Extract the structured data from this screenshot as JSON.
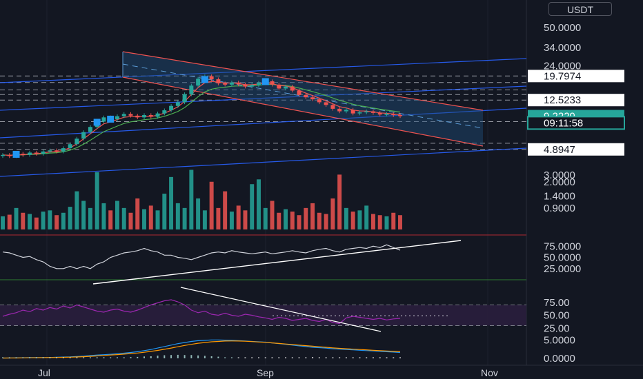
{
  "currency": "USDT",
  "colors": {
    "background": "#131722",
    "grid": "#1e222d",
    "text": "#d1d4dc",
    "up": "#26a69a",
    "down": "#ef5350",
    "channel_line": "#2962ff",
    "channel_fill": "#1f4e79",
    "rsi": "#9c27b0",
    "rsi_band": "#2a1e3d",
    "macd": "#2196f3",
    "signal": "#ff9800",
    "last_price_tag": "#26a69a"
  },
  "chart_data": [
    {
      "type": "candlestick",
      "title": "",
      "y_scale": "log",
      "y_ticks": [
        "50.0000",
        "34.0000",
        "24.0000",
        "3.0000",
        "2.0000",
        "1.4000",
        "0.9000"
      ],
      "x_ticks": [
        "Jul",
        "Sep",
        "Nov"
      ],
      "price_tags": [
        {
          "label": "19.7974",
          "value": 19.8,
          "style": "white"
        },
        {
          "label": "12.5233",
          "value": 12.52,
          "style": "white"
        },
        {
          "label": "9.2229",
          "value": 9.22,
          "style": "green"
        },
        {
          "label": "09:11:58",
          "value": 8.1,
          "style": "green-outline"
        },
        {
          "label": "4.8947",
          "value": 4.89,
          "style": "white"
        }
      ],
      "horizontal_levels": [
        19.8,
        17.5,
        15.2,
        13.9,
        12.52,
        8.3,
        5.5,
        4.89
      ],
      "close": [
        4.4,
        4.3,
        4.5,
        4.4,
        4.6,
        4.5,
        4.7,
        4.8,
        4.7,
        5.0,
        5.4,
        6.0,
        6.8,
        7.5,
        8.3,
        9.0,
        8.7,
        9.2,
        9.6,
        9.3,
        9.0,
        9.4,
        9.1,
        9.7,
        10.3,
        11.2,
        12.0,
        14.0,
        16.5,
        18.8,
        19.7,
        18.6,
        17.2,
        16.8,
        17.5,
        16.9,
        16.2,
        16.7,
        17.4,
        17.9,
        16.8,
        15.6,
        16.2,
        15.0,
        13.8,
        13.2,
        12.7,
        12.0,
        11.4,
        10.6,
        10.1,
        10.4,
        9.7,
        9.9,
        10.1,
        9.8,
        9.5,
        9.6,
        9.4,
        9.22
      ],
      "volume": [
        0.55,
        0.62,
        0.9,
        0.7,
        0.65,
        0.5,
        0.75,
        0.8,
        0.6,
        0.7,
        0.95,
        1.6,
        1.2,
        0.9,
        2.4,
        1.1,
        0.8,
        1.2,
        0.9,
        0.7,
        1.3,
        0.85,
        1.0,
        0.8,
        1.5,
        2.2,
        1.1,
        0.9,
        2.5,
        1.3,
        0.8,
        2.0,
        0.9,
        1.6,
        0.75,
        1.0,
        0.8,
        1.9,
        2.1,
        0.9,
        1.2,
        0.7,
        0.85,
        0.75,
        0.6,
        0.9,
        1.1,
        0.7,
        0.65,
        1.3,
        2.3,
        0.9,
        0.75,
        0.8,
        1.0,
        0.65,
        0.6,
        0.55,
        0.7,
        0.6
      ]
    },
    {
      "type": "line",
      "title": "",
      "y_ticks": [
        "75.0000",
        "50.0000",
        "25.0000"
      ],
      "ylim": [
        0,
        100
      ],
      "values": [
        62,
        60,
        55,
        50,
        52,
        45,
        40,
        30,
        25,
        25,
        30,
        25,
        30,
        25,
        35,
        40,
        50,
        55,
        60,
        62,
        65,
        70,
        65,
        62,
        55,
        55,
        50,
        48,
        45,
        50,
        55,
        60,
        62,
        60,
        65,
        62,
        60,
        58,
        60,
        62,
        58,
        60,
        62,
        65,
        62,
        60,
        65,
        68,
        70,
        65,
        62,
        68,
        70,
        72,
        70,
        75,
        72,
        78,
        72,
        66
      ]
    },
    {
      "type": "line",
      "title": "",
      "y_ticks": [
        "75.00",
        "50.00",
        "25.00"
      ],
      "ylim": [
        0,
        100
      ],
      "band": [
        30,
        70
      ],
      "values": [
        48,
        52,
        55,
        60,
        57,
        63,
        60,
        65,
        62,
        68,
        64,
        70,
        66,
        62,
        58,
        56,
        60,
        62,
        58,
        56,
        60,
        65,
        70,
        74,
        78,
        80,
        76,
        70,
        60,
        55,
        58,
        52,
        50,
        54,
        50,
        48,
        52,
        50,
        47,
        45,
        42,
        46,
        44,
        40,
        42,
        44,
        40,
        38,
        42,
        36,
        34,
        45,
        48,
        46,
        44,
        42,
        44,
        41,
        43,
        44
      ]
    },
    {
      "type": "line",
      "title": "",
      "y_ticks": [
        "5.0000",
        "0.0000"
      ],
      "ylim": [
        0,
        6
      ],
      "series": [
        {
          "values": [
            0.1,
            0.1,
            0.15,
            0.15,
            0.2,
            0.2,
            0.2,
            0.25,
            0.3,
            0.35,
            0.4,
            0.5,
            0.6,
            0.75,
            0.9,
            1.0,
            1.1,
            1.25,
            1.4,
            1.6,
            1.8,
            2.1,
            2.4,
            2.8,
            3.2,
            3.6,
            4.0,
            4.3,
            4.6,
            4.8,
            4.9,
            5.0,
            5.0,
            4.95,
            4.9,
            4.8,
            4.7,
            4.6,
            4.5,
            4.4,
            4.2,
            4.0,
            3.8,
            3.6,
            3.4,
            3.2,
            3.0,
            2.9,
            2.8,
            2.6,
            2.5,
            2.4,
            2.3,
            2.2,
            2.1,
            2.0,
            1.9,
            1.8,
            1.7,
            1.6
          ]
        },
        {
          "values": [
            0.08,
            0.09,
            0.1,
            0.12,
            0.15,
            0.17,
            0.19,
            0.21,
            0.24,
            0.28,
            0.32,
            0.38,
            0.45,
            0.55,
            0.65,
            0.78,
            0.9,
            1.02,
            1.15,
            1.3,
            1.45,
            1.65,
            1.9,
            2.15,
            2.45,
            2.8,
            3.15,
            3.5,
            3.8,
            4.1,
            4.3,
            4.5,
            4.6,
            4.7,
            4.72,
            4.7,
            4.65,
            4.55,
            4.45,
            4.35,
            4.2,
            4.05,
            3.9,
            3.75,
            3.6,
            3.45,
            3.3,
            3.15,
            3.0,
            2.85,
            2.72,
            2.6,
            2.5,
            2.4,
            2.3,
            2.2,
            2.1,
            2.0,
            1.9,
            1.8
          ]
        }
      ]
    }
  ]
}
